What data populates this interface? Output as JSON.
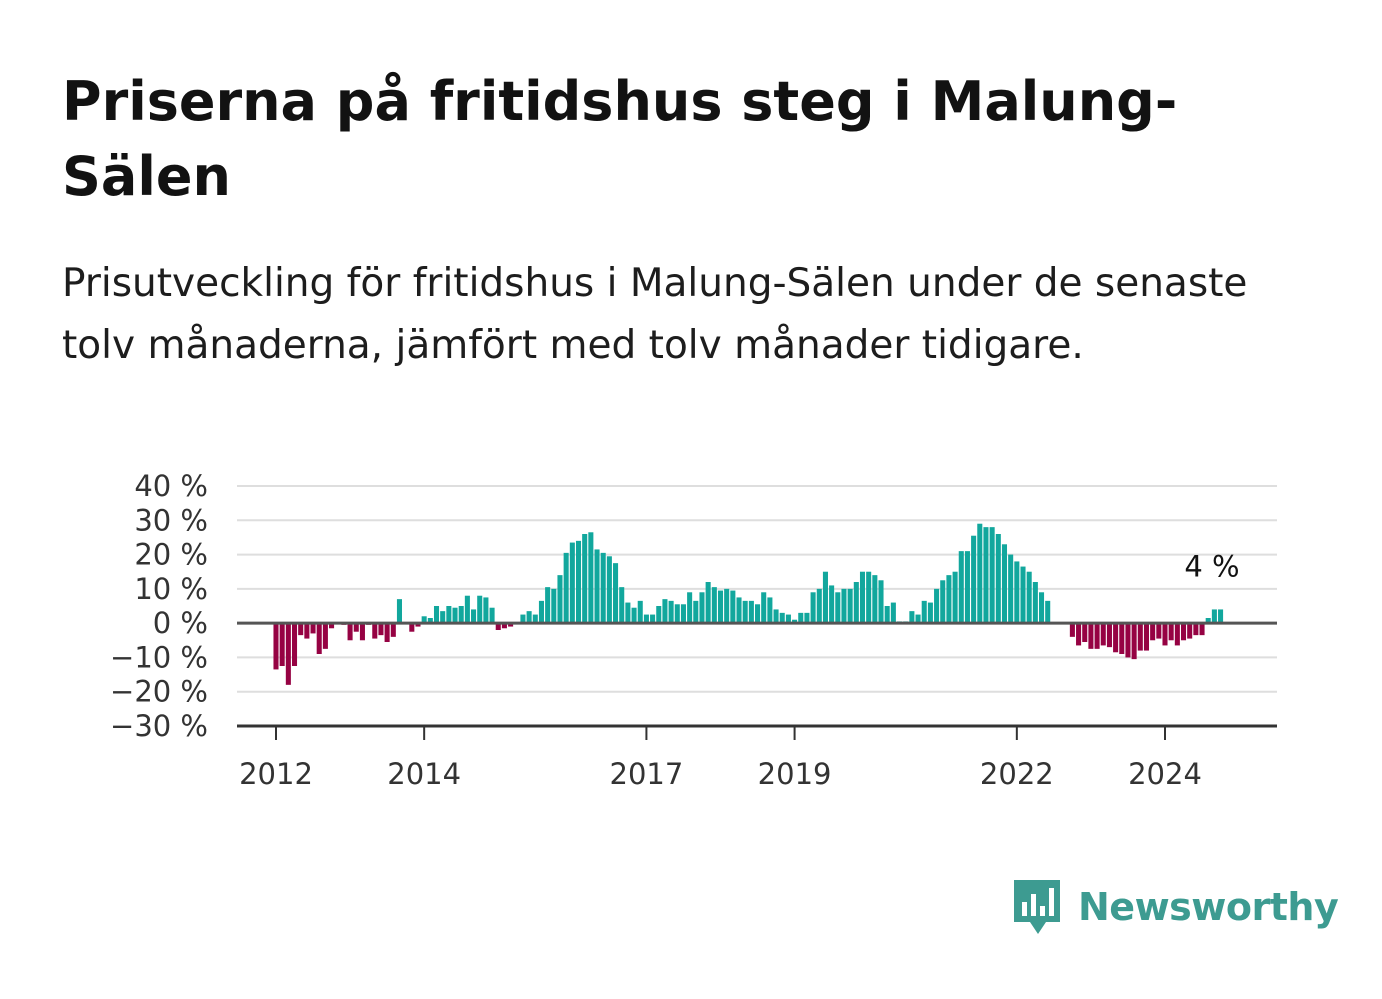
{
  "title": "Priserna på fritidshus steg i Malung-Sälen",
  "subtitle": "Prisutveckling för fritidshus i Malung-Sälen under de senaste tolv månaderna, jämfört med tolv månader tidigare.",
  "brand": {
    "name": "Newsworthy",
    "logo_icon": "bar-chart-speech-bubble-icon",
    "color": "#3d9b91"
  },
  "colors": {
    "positive": "#12a79d",
    "negative": "#960243",
    "grid": "#dedede",
    "axis": "#555555"
  },
  "chart_data": {
    "type": "bar",
    "title": "",
    "xlabel": "",
    "ylabel": "",
    "ylim": [
      -30,
      40
    ],
    "y_ticks": [
      40,
      30,
      20,
      10,
      0,
      -10,
      -20,
      -30
    ],
    "y_tick_labels": [
      "40 %",
      "30 %",
      "20 %",
      "10 %",
      "0 %",
      "−10 %",
      "−20 %",
      "−30 %"
    ],
    "x_tick_labels": [
      "2012",
      "2014",
      "2017",
      "2019",
      "2022",
      "2024"
    ],
    "x_tick_dates": [
      "2012-01",
      "2014-01",
      "2017-01",
      "2019-01",
      "2022-01",
      "2024-01"
    ],
    "first_month": "2012-01",
    "grid": true,
    "annotation": {
      "text": "4 %",
      "month": "2024-09",
      "value": 4
    },
    "series": [
      {
        "values": [
          -13.5,
          -12.5,
          -18.0,
          -12.5,
          -3.5,
          -4.5,
          -3.0,
          -9.0,
          -7.5,
          -1.5,
          0.0,
          -0.5,
          -5.0,
          -2.5,
          -5.0,
          -0.5,
          -4.5,
          -3.5,
          -5.5,
          -4.0,
          7.0,
          0.0,
          -2.5,
          -1.0,
          2.0,
          1.5,
          5.0,
          3.5,
          5.0,
          4.5,
          5.0,
          8.0,
          4.0,
          8.0,
          7.5,
          4.5,
          -2.0,
          -1.5,
          -1.0,
          0.0,
          2.5,
          3.5,
          2.5,
          6.5,
          10.5,
          10.0,
          14.0,
          20.5,
          23.5,
          24.0,
          26.0,
          26.5,
          21.5,
          20.5,
          19.5,
          17.5,
          10.5,
          6.0,
          4.5,
          6.5,
          2.5,
          2.5,
          5.0,
          7.0,
          6.5,
          5.5,
          5.5,
          9.0,
          6.5,
          9.0,
          12.0,
          10.5,
          9.5,
          10.0,
          9.5,
          7.5,
          6.5,
          6.5,
          5.5,
          9.0,
          7.5,
          4.0,
          3.0,
          2.5,
          1.0,
          3.0,
          3.0,
          9.0,
          10.0,
          15.0,
          11.0,
          9.0,
          10.0,
          10.0,
          12.0,
          15.0,
          15.0,
          14.0,
          12.5,
          5.0,
          6.0,
          0.5,
          0.5,
          3.5,
          2.5,
          6.5,
          6.0,
          10.0,
          12.5,
          14.0,
          15.0,
          21.0,
          21.0,
          25.5,
          29.0,
          28.0,
          28.0,
          26.0,
          23.0,
          20.0,
          18.0,
          16.5,
          15.0,
          12.0,
          9.0,
          6.5,
          0.0,
          0.0,
          0.0,
          -4.0,
          -6.5,
          -5.5,
          -7.5,
          -7.5,
          -6.5,
          -7.0,
          -8.5,
          -9.0,
          -10.0,
          -10.5,
          -8.0,
          -8.0,
          -5.0,
          -4.5,
          -6.5,
          -5.0,
          -6.5,
          -5.0,
          -4.5,
          -3.5,
          -3.5,
          1.5,
          4.0,
          4.0
        ]
      }
    ]
  }
}
